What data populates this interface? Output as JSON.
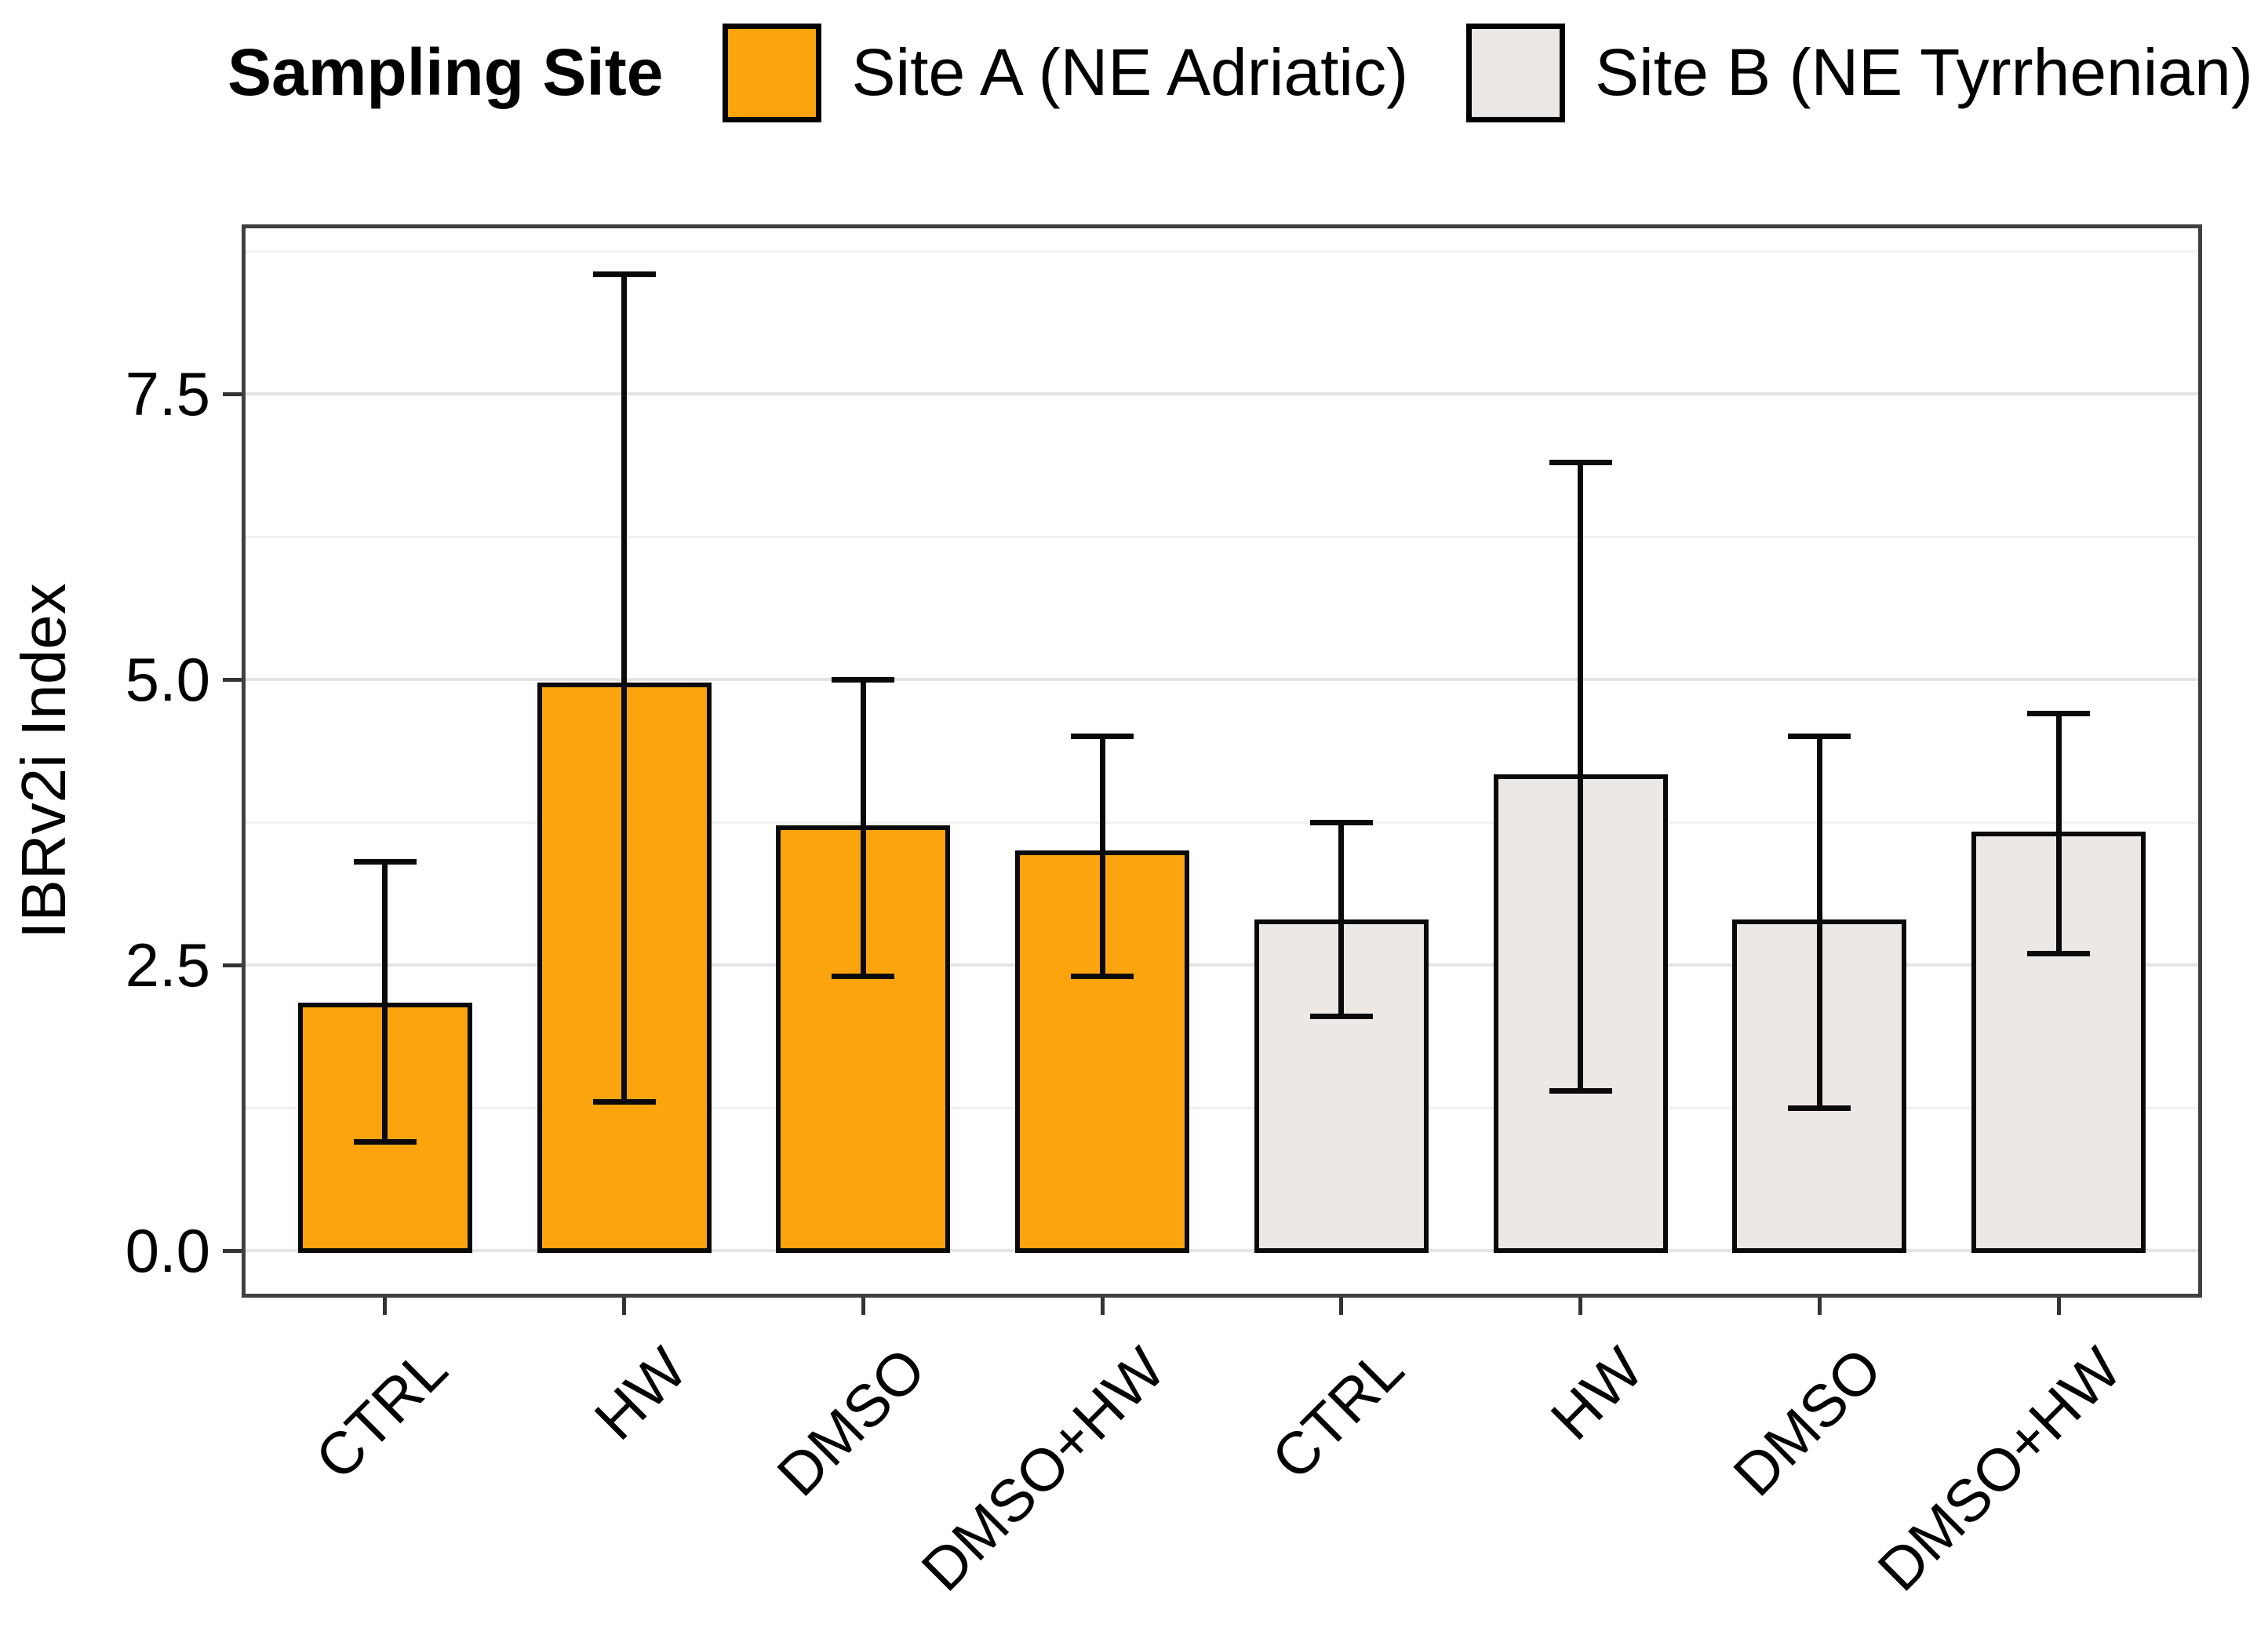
{
  "figure": {
    "background": "#ffffff",
    "legend": {
      "title": "Sampling Site",
      "items": [
        {
          "label": "Site A (NE Adriatic)",
          "color": "#FCA40D"
        },
        {
          "label": "Site B (NE Tyrrhenian)",
          "color": "#ECE8E5"
        }
      ]
    }
  },
  "chart_data": {
    "type": "bar",
    "title": "",
    "xlabel": "",
    "ylabel": "IBRv2i Index",
    "categories": [
      "CTRL",
      "HW",
      "DMSO",
      "DMSO+HW",
      "CTRL",
      "HW",
      "DMSO",
      "DMSO+HW"
    ],
    "series": [
      {
        "name": "Site A (NE Adriatic)",
        "fill": "#FCA40D",
        "treatments": [
          "CTRL",
          "HW",
          "DMSO",
          "DMSO+HW"
        ],
        "values": [
          2.17,
          4.97,
          3.72,
          3.5
        ],
        "err_low": [
          0.95,
          1.3,
          2.4,
          2.4
        ],
        "err_high": [
          3.4,
          8.55,
          5.0,
          4.5
        ]
      },
      {
        "name": "Site B (NE Tyrrhenian)",
        "fill": "#ECE8E5",
        "treatments": [
          "CTRL",
          "HW",
          "DMSO",
          "DMSO+HW"
        ],
        "values": [
          2.9,
          4.17,
          2.9,
          3.67
        ],
        "err_low": [
          2.05,
          1.4,
          1.25,
          2.6
        ],
        "err_high": [
          3.75,
          6.9,
          4.5,
          4.7
        ]
      }
    ],
    "ylim": [
      -0.41,
      8.98
    ],
    "y_major_ticks": [
      0.0,
      2.5,
      5.0,
      7.5
    ],
    "y_minor_ticks": [
      1.25,
      3.75,
      6.25,
      8.75
    ],
    "y_tick_labels": [
      "0.0",
      "2.5",
      "5.0",
      "7.5"
    ],
    "grid": "horizontal",
    "legend_position": "top",
    "bar_outline_color": "#0a0a0a",
    "errorbar_color": "#0a0a0a"
  }
}
